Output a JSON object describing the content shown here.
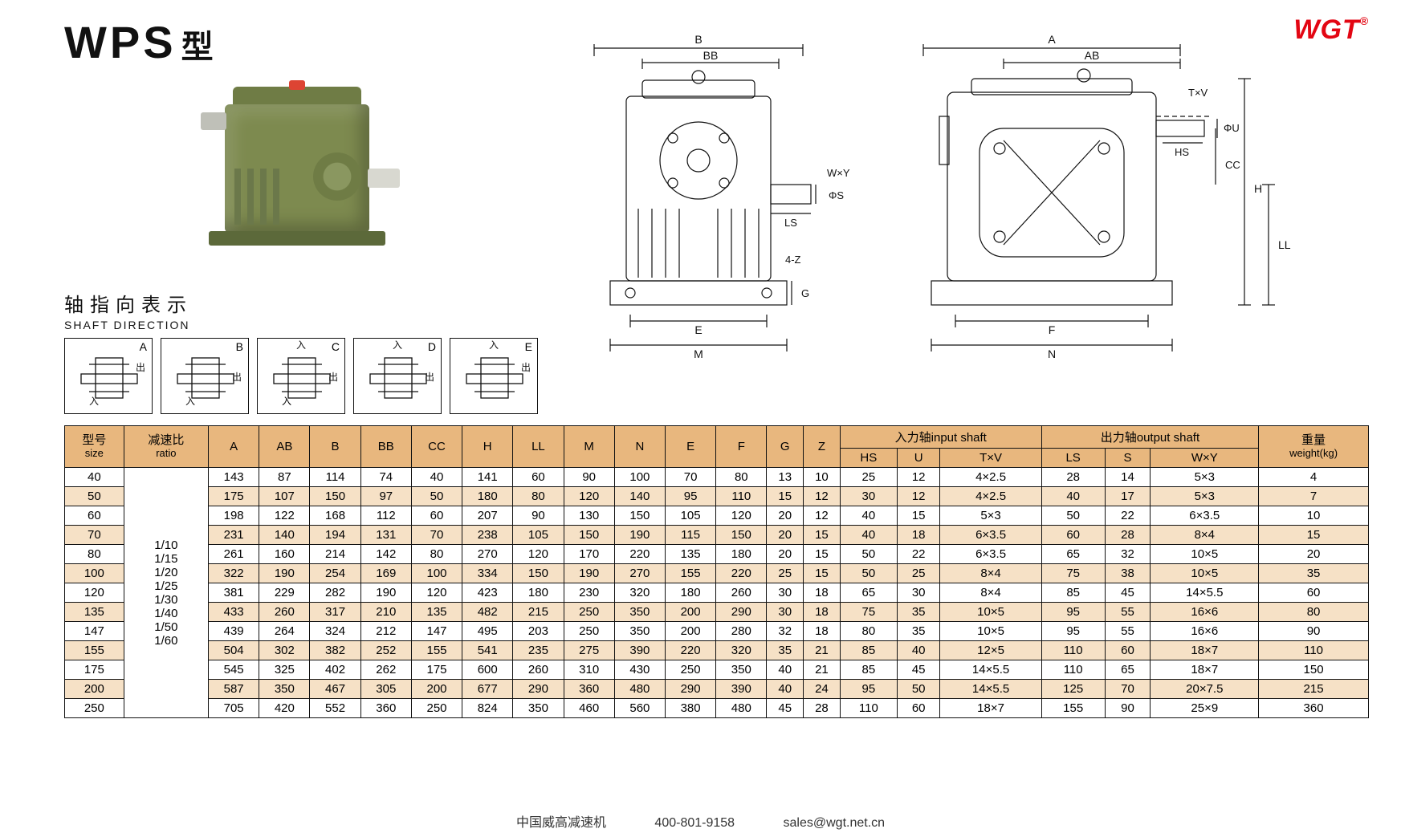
{
  "brand": "WGT",
  "title_main": "WPS",
  "title_suffix": "型",
  "shaft_dir_cn": "轴指向表示",
  "shaft_dir_en": "SHAFT DIRECTION",
  "shaft_variants": [
    "A",
    "B",
    "C",
    "D",
    "E"
  ],
  "shaft_glyph_in": "入",
  "shaft_glyph_out": "出",
  "diagram_labels": {
    "B": "B",
    "BB": "BB",
    "A": "A",
    "AB": "AB",
    "TxV": "T×V",
    "phiU": "ΦU",
    "HS_r": "HS",
    "CC": "CC",
    "H": "H",
    "LL": "LL",
    "F": "F",
    "N": "N",
    "WxY": "W×Y",
    "phiS": "ΦS",
    "LS": "LS",
    "fourZ": "4-Z",
    "G": "G",
    "E": "E",
    "M": "M"
  },
  "table": {
    "headers": {
      "size": {
        "cn": "型号",
        "en": "size"
      },
      "ratio": {
        "cn": "减速比",
        "en": "ratio"
      },
      "cols": [
        "A",
        "AB",
        "B",
        "BB",
        "CC",
        "H",
        "LL",
        "M",
        "N",
        "E",
        "F",
        "G",
        "Z"
      ],
      "input_shaft": {
        "cn": "入力轴",
        "en": "input shaft",
        "sub": [
          "HS",
          "U",
          "T×V"
        ]
      },
      "output_shaft": {
        "cn": "出力轴",
        "en": "output shaft",
        "sub": [
          "LS",
          "S",
          "W×Y"
        ]
      },
      "weight": {
        "cn": "重量",
        "en": "weight(kg)"
      }
    },
    "ratio_values": [
      "1/10",
      "1/15",
      "1/20",
      "1/25",
      "1/30",
      "1/40",
      "1/50",
      "1/60"
    ],
    "rows": [
      {
        "size": "40",
        "d": [
          143,
          87,
          114,
          74,
          40,
          141,
          60,
          90,
          100,
          70,
          80,
          13,
          10,
          25,
          12,
          "4×2.5",
          28,
          14,
          "5×3",
          4
        ]
      },
      {
        "size": "50",
        "d": [
          175,
          107,
          150,
          97,
          50,
          180,
          80,
          120,
          140,
          95,
          110,
          15,
          12,
          30,
          12,
          "4×2.5",
          40,
          17,
          "5×3",
          7
        ]
      },
      {
        "size": "60",
        "d": [
          198,
          122,
          168,
          112,
          60,
          207,
          90,
          130,
          150,
          105,
          120,
          20,
          12,
          40,
          15,
          "5×3",
          50,
          22,
          "6×3.5",
          10
        ]
      },
      {
        "size": "70",
        "d": [
          231,
          140,
          194,
          131,
          70,
          238,
          105,
          150,
          190,
          115,
          150,
          20,
          15,
          40,
          18,
          "6×3.5",
          60,
          28,
          "8×4",
          15
        ]
      },
      {
        "size": "80",
        "d": [
          261,
          160,
          214,
          142,
          80,
          270,
          120,
          170,
          220,
          135,
          180,
          20,
          15,
          50,
          22,
          "6×3.5",
          65,
          32,
          "10×5",
          20
        ]
      },
      {
        "size": "100",
        "d": [
          322,
          190,
          254,
          169,
          100,
          334,
          150,
          190,
          270,
          155,
          220,
          25,
          15,
          50,
          25,
          "8×4",
          75,
          38,
          "10×5",
          35
        ]
      },
      {
        "size": "120",
        "d": [
          381,
          229,
          282,
          190,
          120,
          423,
          180,
          230,
          320,
          180,
          260,
          30,
          18,
          65,
          30,
          "8×4",
          85,
          45,
          "14×5.5",
          60
        ]
      },
      {
        "size": "135",
        "d": [
          433,
          260,
          317,
          210,
          135,
          482,
          215,
          250,
          350,
          200,
          290,
          30,
          18,
          75,
          35,
          "10×5",
          95,
          55,
          "16×6",
          80
        ]
      },
      {
        "size": "147",
        "d": [
          439,
          264,
          324,
          212,
          147,
          495,
          203,
          250,
          350,
          200,
          280,
          32,
          18,
          80,
          35,
          "10×5",
          95,
          55,
          "16×6",
          90
        ]
      },
      {
        "size": "155",
        "d": [
          504,
          302,
          382,
          252,
          155,
          541,
          235,
          275,
          390,
          220,
          320,
          35,
          21,
          85,
          40,
          "12×5",
          110,
          60,
          "18×7",
          110
        ]
      },
      {
        "size": "175",
        "d": [
          545,
          325,
          402,
          262,
          175,
          600,
          260,
          310,
          430,
          250,
          350,
          40,
          21,
          85,
          45,
          "14×5.5",
          110,
          65,
          "18×7",
          150
        ]
      },
      {
        "size": "200",
        "d": [
          587,
          350,
          467,
          305,
          200,
          677,
          290,
          360,
          480,
          290,
          390,
          40,
          24,
          95,
          50,
          "14×5.5",
          125,
          70,
          "20×7.5",
          215
        ]
      },
      {
        "size": "250",
        "d": [
          705,
          420,
          552,
          360,
          250,
          824,
          350,
          460,
          560,
          380,
          480,
          45,
          28,
          110,
          60,
          "18×7",
          155,
          90,
          "25×9",
          360
        ]
      }
    ]
  },
  "footer": {
    "company": "中国威高减速机",
    "phone": "400-801-9158",
    "email": "sales@wgt.net.cn"
  },
  "colors": {
    "header_bg": "#e8b77e",
    "row_alt_bg": "#f6e1c6",
    "brand_red": "#e30613",
    "gearbox_green": "#7d8a4f",
    "line": "#111111"
  }
}
